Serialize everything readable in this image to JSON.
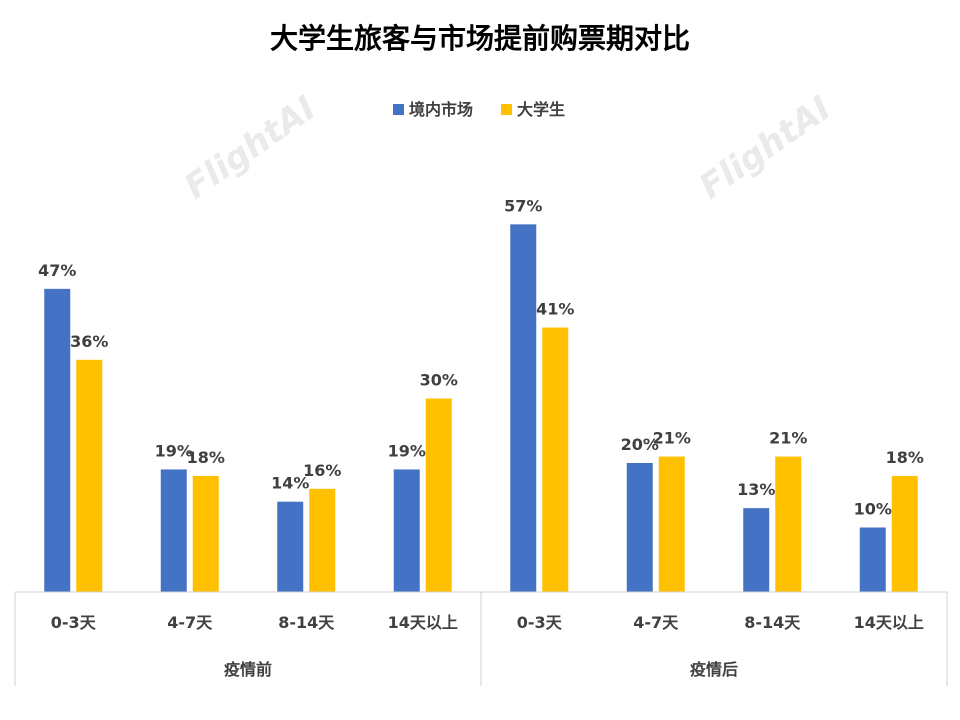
{
  "chart_data": {
    "type": "bar",
    "title": "大学生旅客与市场提前购票期对比",
    "groups": [
      {
        "label": "疫情前",
        "categories": [
          "0-3天",
          "4-7天",
          "8-14天",
          "14天以上"
        ]
      },
      {
        "label": "疫情后",
        "categories": [
          "0-3天",
          "4-7天",
          "8-14天",
          "14天以上"
        ]
      }
    ],
    "series": [
      {
        "name": "境内市场",
        "color": "#4472C4",
        "values": [
          47,
          19,
          14,
          19,
          57,
          20,
          13,
          10
        ]
      },
      {
        "name": "大学生",
        "color": "#FFC000",
        "values": [
          36,
          18,
          16,
          30,
          41,
          21,
          21,
          18
        ]
      }
    ],
    "value_format": "percent",
    "ylim": [
      0,
      60
    ],
    "grid": false,
    "legend_position": "top-center",
    "watermark": "FlightAI"
  }
}
